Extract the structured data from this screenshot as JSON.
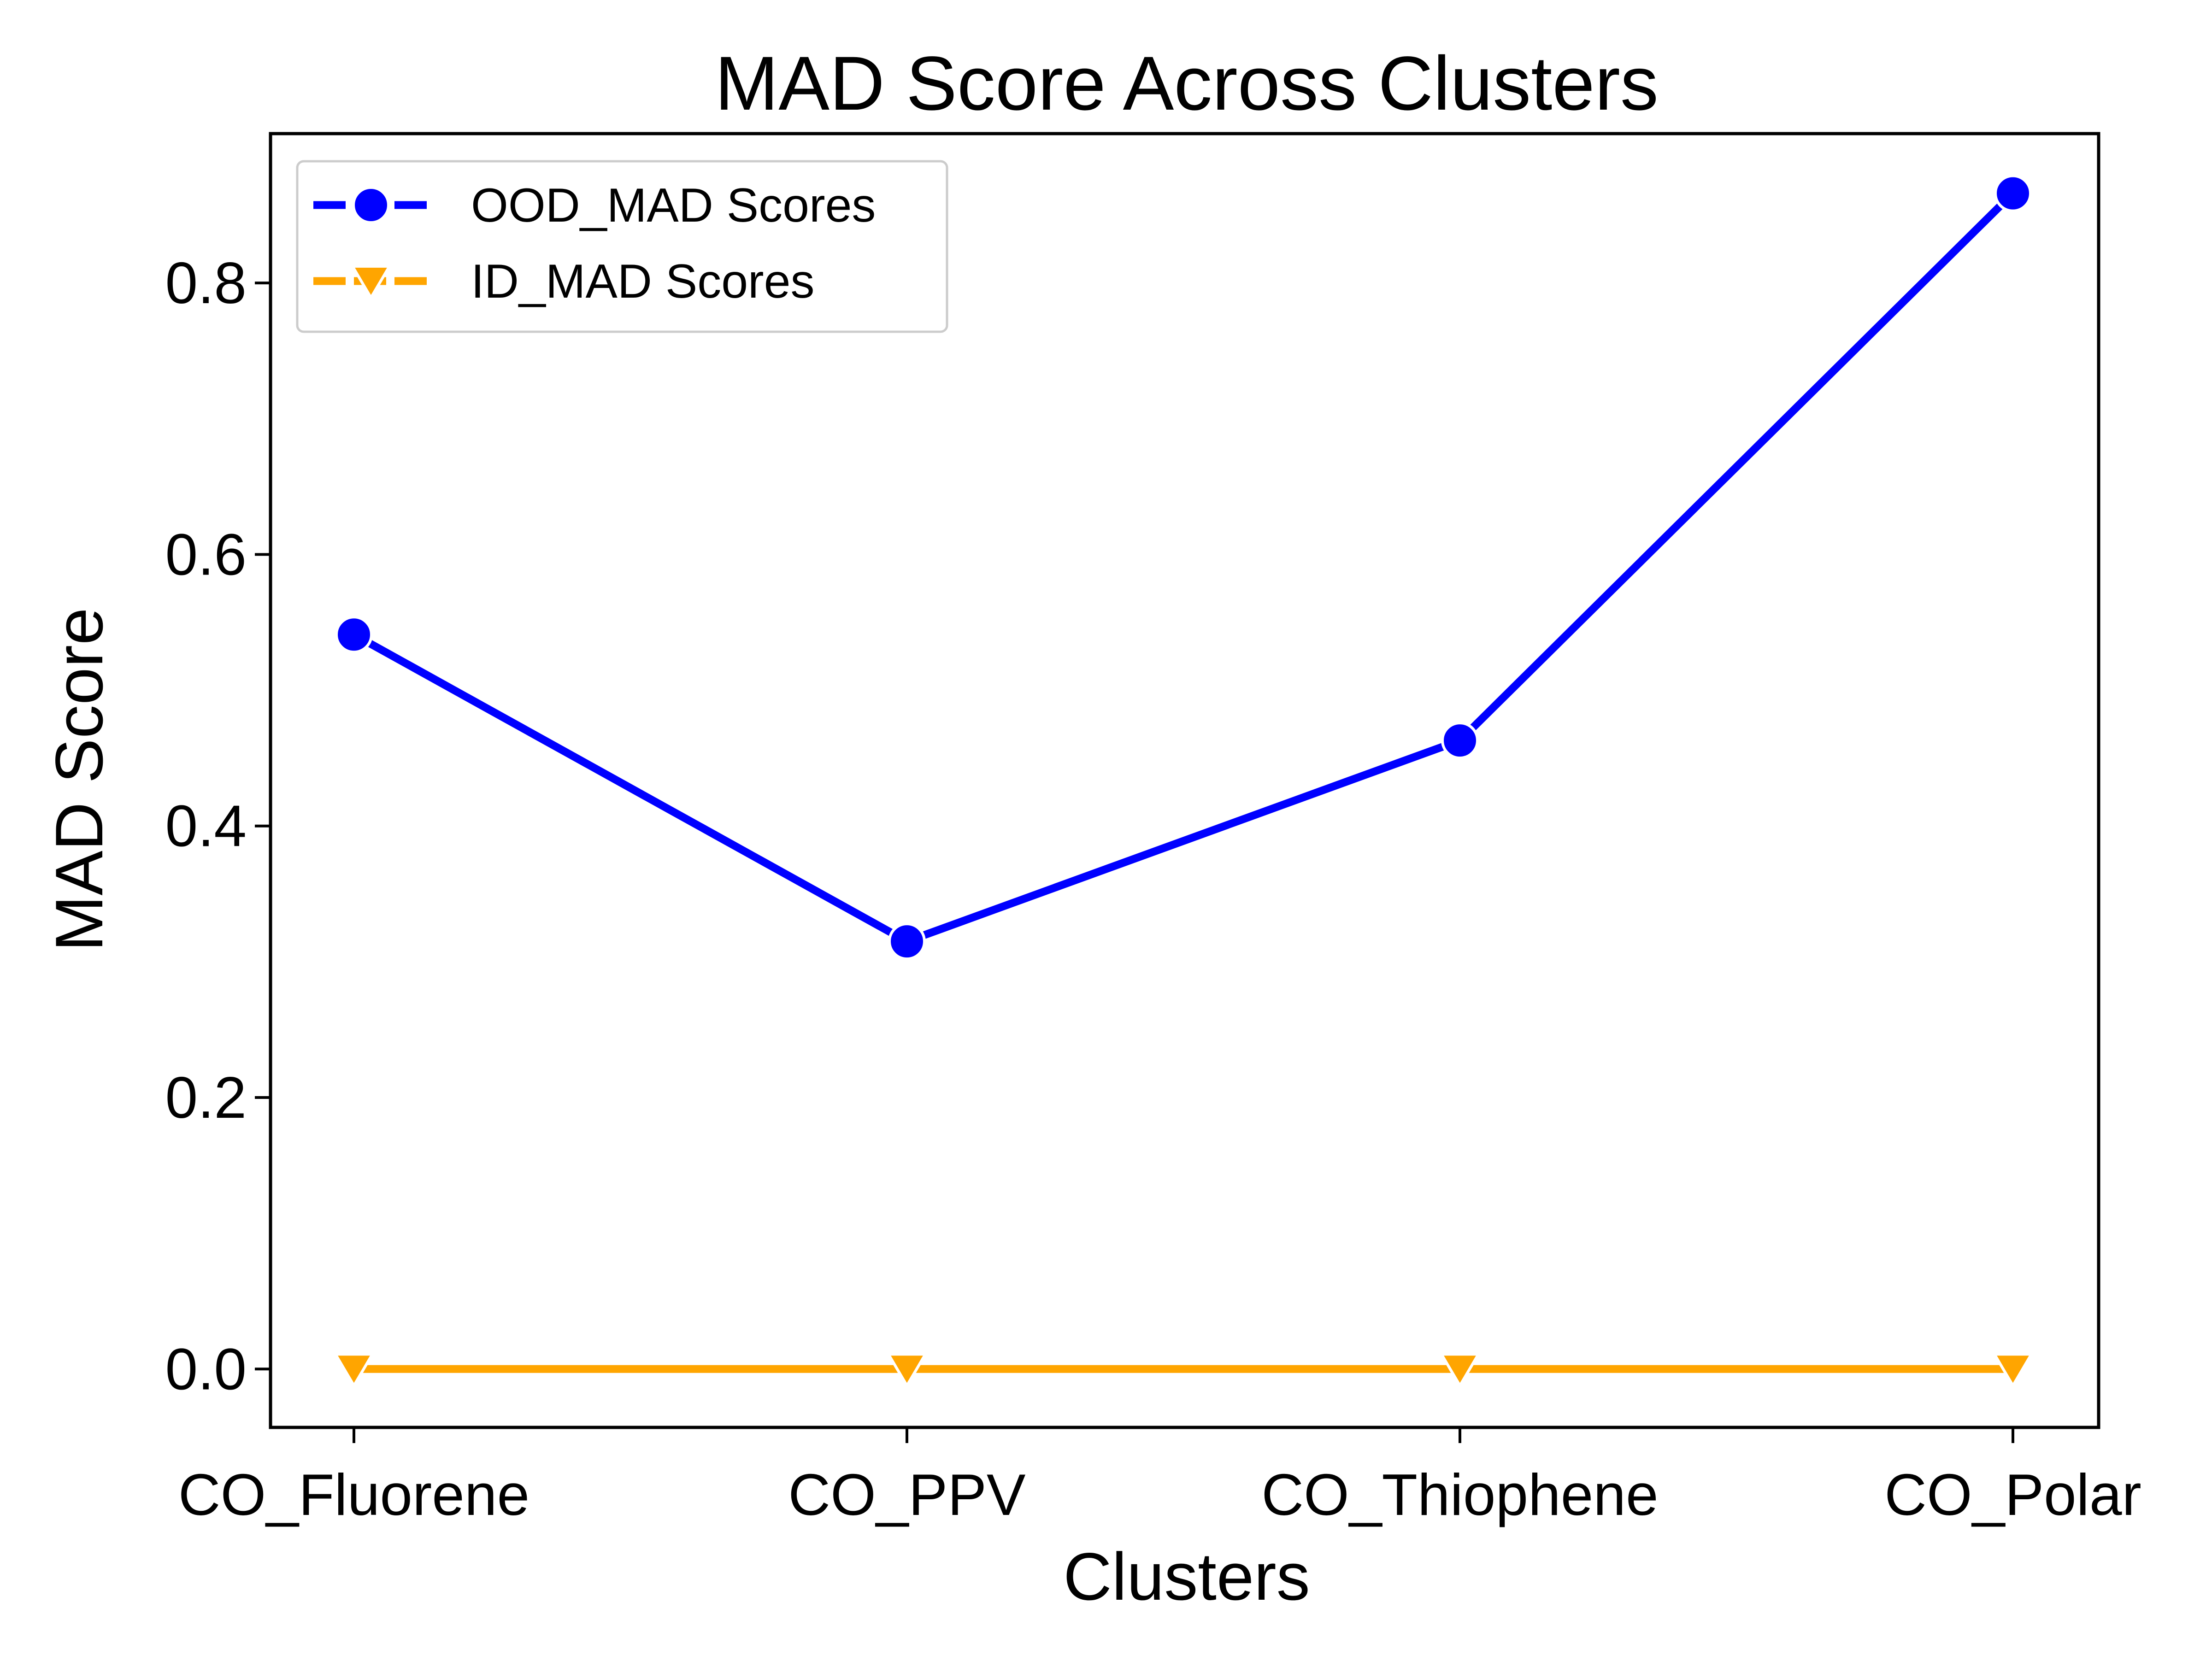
{
  "chart_data": {
    "type": "line",
    "title": "MAD Score Across Clusters",
    "xlabel": "Clusters",
    "ylabel": "MAD Score",
    "categories": [
      "CO_Fluorene",
      "CO_PPV",
      "CO_Thiophene",
      "CO_Polar"
    ],
    "ylim": [
      -0.043,
      0.91
    ],
    "yticks": [
      0.0,
      0.2,
      0.4,
      0.6,
      0.8
    ],
    "ytick_labels": [
      "0.0",
      "0.2",
      "0.4",
      "0.6",
      "0.8"
    ],
    "grid": false,
    "legend_position": "top-left",
    "series": [
      {
        "name": "OOD_MAD Scores",
        "values": [
          0.541,
          0.315,
          0.463,
          0.866
        ],
        "color": "#0000ff",
        "marker": "circle"
      },
      {
        "name": "ID_MAD Scores",
        "values": [
          0.0,
          0.0,
          0.0,
          0.0
        ],
        "color": "#ffa500",
        "marker": "triangle-down"
      }
    ]
  }
}
